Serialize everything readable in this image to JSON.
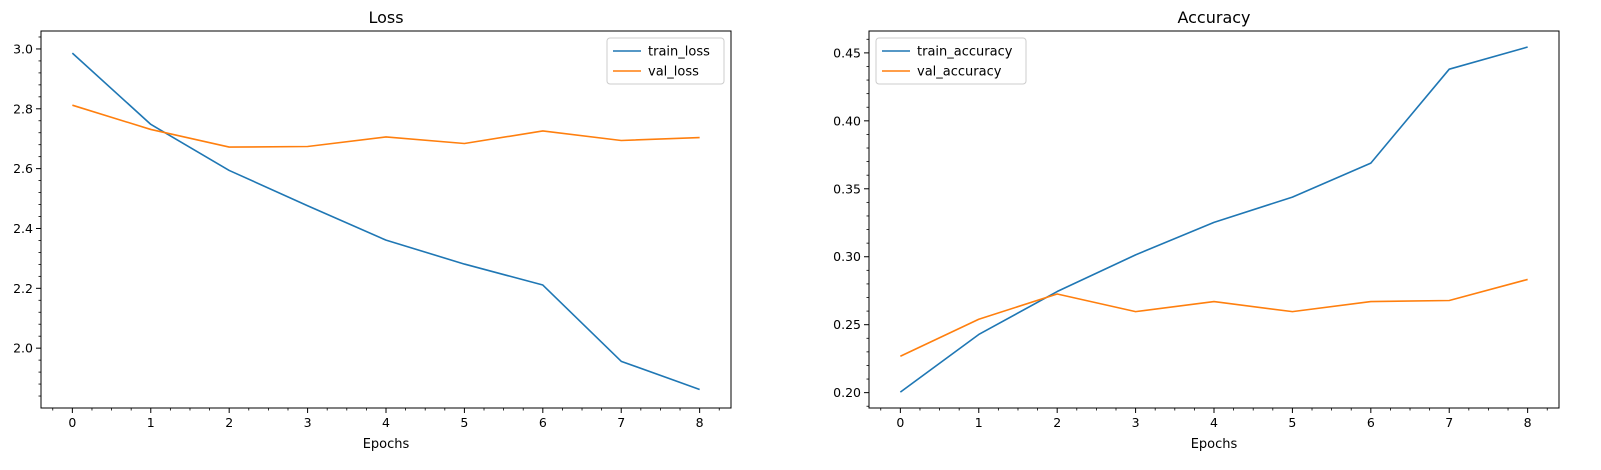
{
  "chart_data": [
    {
      "type": "line",
      "title": "Loss",
      "xlabel": "Epochs",
      "ylabel": "",
      "x": [
        0,
        1,
        2,
        3,
        4,
        5,
        6,
        7,
        8
      ],
      "xlim": [
        -0.4,
        8.4
      ],
      "ylim": [
        1.8,
        3.06
      ],
      "xticks": [
        0,
        1,
        2,
        3,
        4,
        5,
        6,
        7,
        8
      ],
      "yticks": [
        2.0,
        2.2,
        2.4,
        2.6,
        2.8,
        3.0
      ],
      "ytick_labels": [
        "2.0",
        "2.2",
        "2.4",
        "2.6",
        "2.8",
        "3.0"
      ],
      "minor_ticks": true,
      "grid": false,
      "legend_position": "upper right",
      "series": [
        {
          "name": "train_loss",
          "color": "#1f77b4",
          "values": [
            2.986,
            2.748,
            2.594,
            2.476,
            2.361,
            2.281,
            2.211,
            1.956,
            1.862
          ]
        },
        {
          "name": "val_loss",
          "color": "#ff7f0e",
          "values": [
            2.812,
            2.731,
            2.672,
            2.674,
            2.706,
            2.684,
            2.726,
            2.694,
            2.704
          ]
        }
      ]
    },
    {
      "type": "line",
      "title": "Accuracy",
      "xlabel": "Epochs",
      "ylabel": "",
      "x": [
        0,
        1,
        2,
        3,
        4,
        5,
        6,
        7,
        8
      ],
      "xlim": [
        -0.4,
        8.4
      ],
      "ylim": [
        0.1887,
        0.4661
      ],
      "xticks": [
        0,
        1,
        2,
        3,
        4,
        5,
        6,
        7,
        8
      ],
      "yticks": [
        0.2,
        0.25,
        0.3,
        0.35,
        0.4,
        0.45
      ],
      "ytick_labels": [
        "0.20",
        "0.25",
        "0.30",
        "0.35",
        "0.40",
        "0.45"
      ],
      "minor_ticks": true,
      "grid": false,
      "legend_position": "upper left",
      "series": [
        {
          "name": "train_accuracy",
          "color": "#1f77b4",
          "values": [
            0.2004,
            0.2428,
            0.2744,
            0.3014,
            0.3253,
            0.3439,
            0.3689,
            0.438,
            0.4543
          ]
        },
        {
          "name": "val_accuracy",
          "color": "#ff7f0e",
          "values": [
            0.2268,
            0.254,
            0.2726,
            0.2596,
            0.267,
            0.2596,
            0.267,
            0.2678,
            0.2833
          ]
        }
      ]
    }
  ]
}
